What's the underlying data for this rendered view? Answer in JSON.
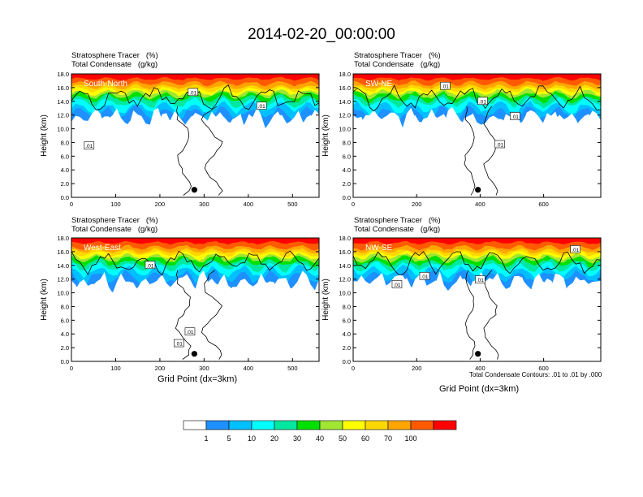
{
  "title": "2014-02-20_00:00:00",
  "field_labels": [
    "Stratosphere Tracer   (%)",
    "Total Condensate   (g/kg)"
  ],
  "xlabel": "Grid Point (dx=3km)",
  "ylabel": "Height (km)",
  "contour_note": "Total Condensate Contours: .01 to .01 by .000",
  "colorbar": {
    "levels": [
      "1",
      "5",
      "10",
      "20",
      "30",
      "40",
      "50",
      "60",
      "70",
      "100"
    ],
    "colors": [
      "#ffffff",
      "#1e90ff",
      "#00bfff",
      "#00ffff",
      "#00e8a0",
      "#00e000",
      "#a0e632",
      "#ffff00",
      "#ffd700",
      "#ffa500",
      "#ff5a00",
      "#ff0000"
    ]
  },
  "chart_data": [
    {
      "type": "heatmap",
      "name": "South-North",
      "xlim": [
        0,
        560
      ],
      "ylim": [
        0,
        18
      ],
      "xticks": [
        "0",
        "100",
        "200",
        "300",
        "400",
        "500"
      ],
      "xtick_values": [
        0,
        100,
        200,
        300,
        400,
        500
      ],
      "yticks": [
        "0.0",
        "2.0",
        "4.0",
        "6.0",
        "8.0",
        "10.0",
        "12.0",
        "14.0",
        "16.0",
        "18.0"
      ],
      "contour_labels": [
        {
          "text": ".01",
          "x": 275,
          "y": 15.3
        },
        {
          "text": ".01",
          "x": 430,
          "y": 13.3
        },
        {
          "text": ".01",
          "x": 40,
          "y": 7.5
        }
      ],
      "marker": {
        "x": 278,
        "y": 1.1
      }
    },
    {
      "type": "heatmap",
      "name": "SW-NE",
      "xlim": [
        0,
        780
      ],
      "ylim": [
        0,
        18
      ],
      "xticks": [
        "0",
        "200",
        "400",
        "600"
      ],
      "xtick_values": [
        0,
        200,
        400,
        600
      ],
      "yticks": [
        "0.0",
        "2.0",
        "4.0",
        "6.0",
        "8.0",
        "10.0",
        "12.0",
        "14.0",
        "16.0",
        "18.0"
      ],
      "contour_labels": [
        {
          "text": ".01",
          "x": 290,
          "y": 16.2
        },
        {
          "text": ".01",
          "x": 408,
          "y": 14.0
        },
        {
          "text": ".01",
          "x": 510,
          "y": 11.8
        },
        {
          "text": ".01",
          "x": 462,
          "y": 7.7
        }
      ],
      "marker": {
        "x": 393,
        "y": 1.1
      }
    },
    {
      "type": "heatmap",
      "name": "West-East",
      "xlim": [
        0,
        560
      ],
      "ylim": [
        0,
        18
      ],
      "xticks": [
        "0",
        "100",
        "200",
        "300",
        "400",
        "500"
      ],
      "xtick_values": [
        0,
        100,
        200,
        300,
        400,
        500
      ],
      "yticks": [
        "0.0",
        "2.0",
        "4.0",
        "6.0",
        "8.0",
        "10.0",
        "12.0",
        "14.0",
        "16.0",
        "18.0"
      ],
      "contour_labels": [
        {
          "text": ".01",
          "x": 178,
          "y": 14.0
        },
        {
          "text": ".01",
          "x": 268,
          "y": 4.3
        },
        {
          "text": ".01",
          "x": 243,
          "y": 2.6
        }
      ],
      "marker": {
        "x": 278,
        "y": 1.1
      }
    },
    {
      "type": "heatmap",
      "name": "NW-SE",
      "xlim": [
        0,
        780
      ],
      "ylim": [
        0,
        18
      ],
      "xticks": [
        "0",
        "200",
        "400",
        "600"
      ],
      "xtick_values": [
        0,
        200,
        400,
        600
      ],
      "yticks": [
        "0.0",
        "2.0",
        "4.0",
        "6.0",
        "8.0",
        "10.0",
        "12.0",
        "14.0",
        "16.0",
        "18.0"
      ],
      "contour_labels": [
        {
          "text": ".01",
          "x": 700,
          "y": 16.3
        },
        {
          "text": ".01",
          "x": 225,
          "y": 12.4
        },
        {
          "text": ".01",
          "x": 400,
          "y": 11.9
        },
        {
          "text": ".01",
          "x": 138,
          "y": 11.2
        }
      ],
      "marker": {
        "x": 393,
        "y": 1.1
      }
    }
  ]
}
